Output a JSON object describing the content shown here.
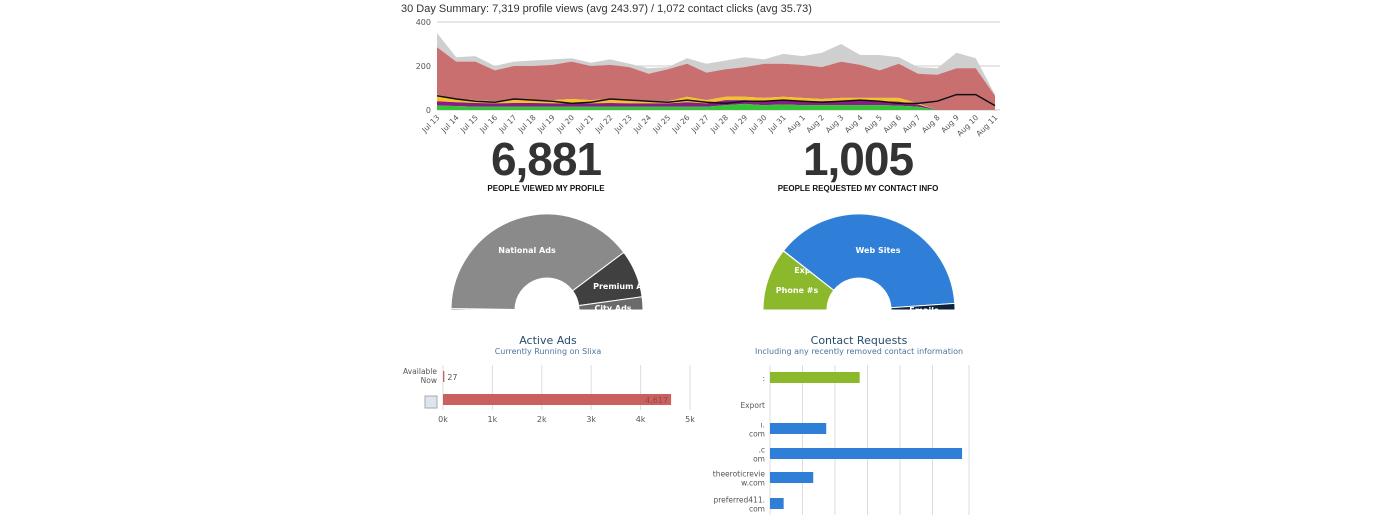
{
  "summary": "30 Day Summary: 7,319 profile views (avg 243.97) / 1,072 contact clicks (avg 35.73)",
  "chart_data": [
    {
      "type": "area",
      "stacked": true,
      "ylim": [
        0,
        400
      ],
      "yticks": [
        "0",
        "200",
        "400"
      ],
      "grid": true,
      "categories": [
        "Jul 13",
        "Jul 14",
        "Jul 15",
        "Jul 16",
        "Jul 17",
        "Jul 18",
        "Jul 19",
        "Jul 20",
        "Jul 21",
        "Jul 22",
        "Jul 23",
        "Jul 24",
        "Jul 25",
        "Jul 26",
        "Jul 27",
        "Jul 28",
        "Jul 29",
        "Jul 30",
        "Jul 31",
        "Aug 1",
        "Aug 2",
        "Aug 3",
        "Aug 4",
        "Aug 5",
        "Aug 6",
        "Aug 7",
        "Aug 8",
        "Aug 9",
        "Aug 10",
        "Aug 11"
      ],
      "series": [
        {
          "color": "#35c435",
          "values": [
            20,
            18,
            15,
            15,
            15,
            15,
            15,
            15,
            15,
            15,
            15,
            15,
            15,
            15,
            15,
            22,
            28,
            22,
            25,
            22,
            22,
            22,
            22,
            22,
            20,
            15,
            0,
            0,
            0,
            0
          ]
        },
        {
          "color": "#8a1c8a",
          "values": [
            20,
            17,
            17,
            15,
            17,
            17,
            15,
            15,
            15,
            17,
            15,
            15,
            15,
            20,
            15,
            23,
            17,
            18,
            17,
            18,
            18,
            20,
            20,
            18,
            18,
            10,
            0,
            0,
            0,
            0
          ]
        },
        {
          "color": "#f5c22c",
          "values": [
            30,
            15,
            13,
            10,
            13,
            13,
            15,
            20,
            15,
            18,
            15,
            10,
            10,
            25,
            15,
            15,
            15,
            15,
            18,
            15,
            10,
            13,
            13,
            15,
            17,
            5,
            0,
            0,
            0,
            0
          ]
        },
        {
          "color": "#c96f6f",
          "values": [
            215,
            170,
            175,
            140,
            155,
            155,
            160,
            170,
            155,
            155,
            150,
            125,
            145,
            150,
            125,
            125,
            135,
            155,
            150,
            150,
            145,
            165,
            150,
            125,
            155,
            135,
            160,
            190,
            190,
            65
          ]
        },
        {
          "color": "#cfcfcf",
          "values": [
            65,
            20,
            25,
            20,
            20,
            25,
            25,
            15,
            15,
            25,
            15,
            25,
            10,
            25,
            40,
            40,
            45,
            20,
            45,
            40,
            65,
            80,
            45,
            70,
            30,
            30,
            30,
            70,
            45,
            5
          ]
        }
      ],
      "line": {
        "color": "#111111",
        "values": [
          65,
          50,
          40,
          35,
          50,
          45,
          40,
          30,
          35,
          50,
          45,
          40,
          35,
          45,
          35,
          30,
          40,
          40,
          45,
          40,
          35,
          40,
          45,
          40,
          30,
          30,
          40,
          70,
          70,
          20
        ]
      }
    },
    {
      "type": "pie",
      "variant": "semi-donut",
      "labels": [
        "Available Now",
        "National Ads",
        "Premium Ads",
        "City Ads"
      ],
      "values": [
        0.5,
        79.1,
        16.1,
        4.4
      ],
      "colors": [
        "#555555",
        "#8a8a8a",
        "#404040",
        "#6a6a6a"
      ]
    },
    {
      "type": "pie",
      "variant": "semi-donut",
      "labels": [
        "Phone #s",
        "Export",
        "Web Sites",
        "Emails"
      ],
      "values": [
        21.1,
        0.1,
        76.6,
        2.2
      ],
      "colors": [
        "#8cb82b",
        "#8cb82b",
        "#2f7ed8",
        "#0d233a"
      ]
    },
    {
      "type": "bar",
      "orientation": "horizontal",
      "title": "Active Ads",
      "subtitle": "Currently Running on Slixa",
      "categories": [
        "Available Now",
        ""
      ],
      "values": [
        27,
        4617
      ],
      "data_labels": [
        "27",
        "4,617"
      ],
      "xticks": [
        "0k",
        "1k",
        "2k",
        "3k",
        "4k",
        "5k"
      ],
      "xlim": [
        0,
        5000
      ],
      "colors": [
        "#c9605f",
        "#c9605f"
      ]
    },
    {
      "type": "bar",
      "orientation": "horizontal",
      "title": "Contact Requests",
      "subtitle": "Including any recently removed contact information",
      "categories": [
        ":",
        "Export",
        "ı.\ncom",
        ".c\nom",
        "theeroticrevie\nw.com",
        "preferred411.\ncom"
      ],
      "values": [
        276,
        0,
        173,
        591,
        133,
        42
      ],
      "xlim": [
        0,
        600
      ],
      "colors": [
        "#8cb82b",
        "#2f7ed8",
        "#2f7ed8",
        "#2f7ed8",
        "#2f7ed8",
        "#2f7ed8"
      ]
    }
  ],
  "stats": {
    "views_number": "6,881",
    "views_label": "PEOPLE VIEWED MY PROFILE",
    "contact_number": "1,005",
    "contact_label": "PEOPLE REQUESTED MY CONTACT INFO"
  }
}
